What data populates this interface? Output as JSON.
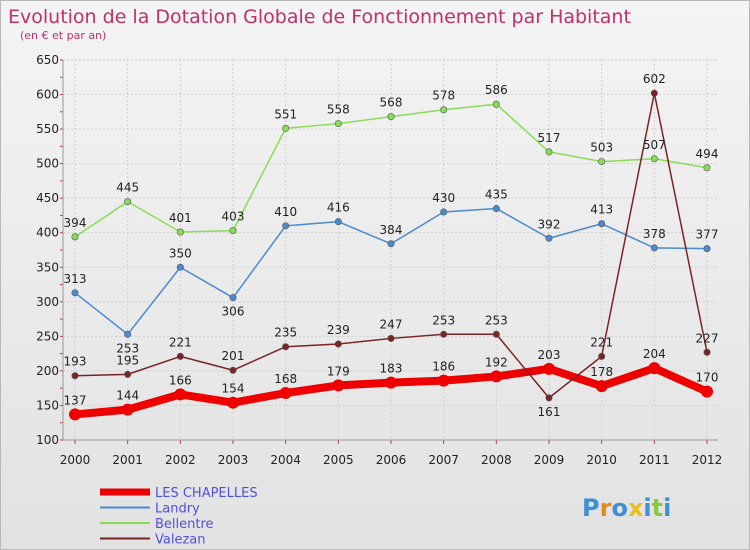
{
  "chart_data": {
    "type": "line",
    "title": "Evolution de la Dotation Globale de Fonctionnement par Habitant",
    "subtitle": "(en € et par an)",
    "x": [
      "2000",
      "2001",
      "2002",
      "2003",
      "2004",
      "2005",
      "2006",
      "2007",
      "2008",
      "2009",
      "2010",
      "2011",
      "2012"
    ],
    "ylim": [
      100,
      650
    ],
    "yticks": [
      100,
      150,
      200,
      250,
      300,
      350,
      400,
      450,
      500,
      550,
      600,
      650
    ],
    "grid": true,
    "legend_position": "bottom-left",
    "series": [
      {
        "name": "LES CHAPELLES",
        "color": "#ee0000",
        "values": [
          137,
          144,
          166,
          154,
          168,
          179,
          183,
          186,
          192,
          203,
          178,
          204,
          170
        ]
      },
      {
        "name": "Landry",
        "color": "#4a8ad0",
        "values": [
          313,
          253,
          350,
          306,
          410,
          416,
          384,
          430,
          435,
          392,
          413,
          378,
          377
        ]
      },
      {
        "name": "Bellentre",
        "color": "#88dd55",
        "values": [
          394,
          445,
          401,
          403,
          551,
          558,
          568,
          578,
          586,
          517,
          503,
          507,
          494
        ]
      },
      {
        "name": "Valezan",
        "color": "#7a2424",
        "values": [
          193,
          195,
          221,
          201,
          235,
          239,
          247,
          253,
          253,
          161,
          221,
          602,
          227
        ]
      }
    ]
  },
  "logo": {
    "text": "Proxiti"
  }
}
